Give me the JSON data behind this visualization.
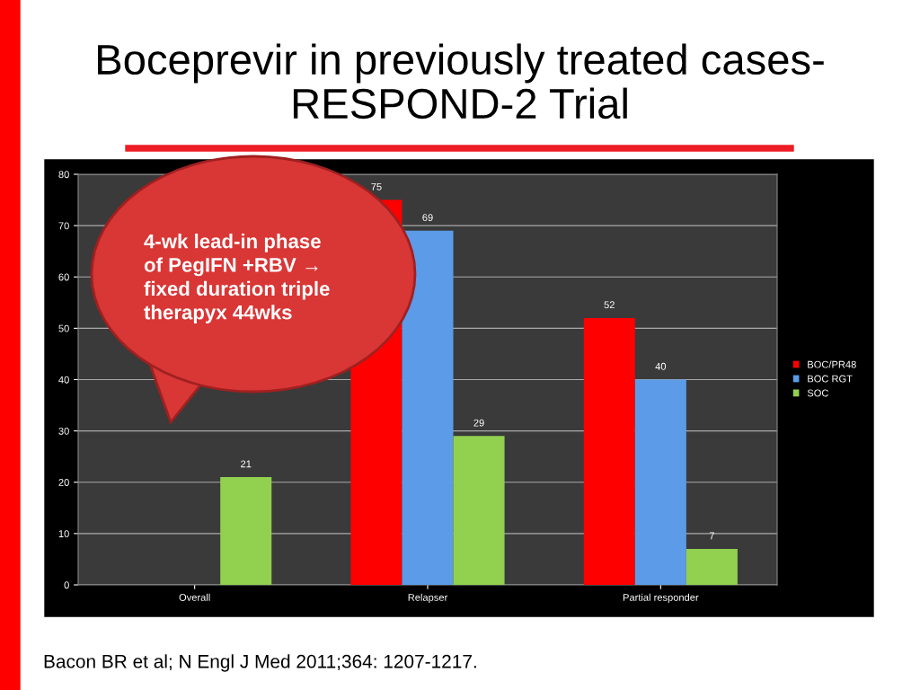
{
  "chart_data": {
    "type": "bar",
    "title": "Boceprevir in previously treated cases-\nRESPOND-2 Trial",
    "categories": [
      "Overall",
      "Relapser",
      "Partial responder"
    ],
    "series": [
      {
        "name": "BOC/PR48",
        "color": "#ff0000",
        "values": [
          null,
          75,
          52
        ]
      },
      {
        "name": "BOC RGT",
        "color": "#5b9be8",
        "values": [
          null,
          69,
          40
        ]
      },
      {
        "name": "SOC",
        "color": "#92d050",
        "values": [
          21,
          29,
          7
        ]
      }
    ],
    "ylim": [
      0,
      80
    ],
    "yticks": [
      0,
      10,
      20,
      30,
      40,
      50,
      60,
      70,
      80
    ],
    "grid": "y",
    "legend": "right",
    "data_labels": true,
    "annotations": [
      "4-wk lead-in phase\nof PegIFN +RBV →\nfixed duration triple\ntherapyx 44wks",
      "Bacon BR et al; N Engl J Med 2011;364: 1207-1217."
    ]
  }
}
